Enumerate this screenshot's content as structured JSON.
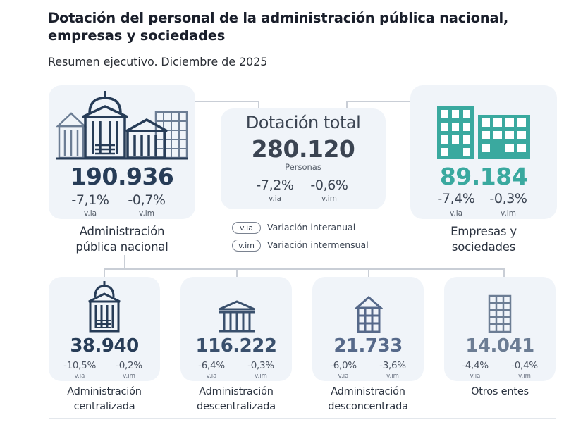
{
  "header": {
    "title": "Dotación del personal de la administración pública nacional, empresas y sociedades",
    "subtitle": "Resumen ejecutivo. Diciembre de 2025"
  },
  "colors": {
    "navy": "#273c57",
    "teal": "#3aa99f",
    "slate": "#6c7d94",
    "card": "#f0f4f9"
  },
  "total": {
    "title": "Dotación total",
    "value": "280.120",
    "unit": "Personas",
    "via": "-7,2%",
    "vim": "-0,6%",
    "via_label": "v.ia",
    "vim_label": "v.im"
  },
  "apn": {
    "value": "190.936",
    "via": "-7,1%",
    "vim": "-0,7%",
    "via_label": "v.ia",
    "vim_label": "v.im",
    "caption_1": "Administración",
    "caption_2": "pública nacional",
    "icon": "government-buildings-icon"
  },
  "empresas": {
    "value": "89.184",
    "via": "-7,4%",
    "vim": "-0,3%",
    "via_label": "v.ia",
    "vim_label": "v.im",
    "caption_1": "Empresas y",
    "caption_2": "sociedades",
    "icon": "office-towers-icon"
  },
  "legend": [
    {
      "code": "v.ia",
      "text": "Variación interanual"
    },
    {
      "code": "v.im",
      "text": "Variación intermensual"
    }
  ],
  "subgroups": [
    {
      "value": "38.940",
      "via": "-10,5%",
      "vim": "-0,2%",
      "via_label": "v.ia",
      "vim_label": "v.im",
      "caption_1": "Administración",
      "caption_2": "centralizada",
      "icon": "capitol-icon"
    },
    {
      "value": "116.222",
      "via": "-6,4%",
      "vim": "-0,3%",
      "via_label": "v.ia",
      "vim_label": "v.im",
      "caption_1": "Administración",
      "caption_2": "descentralizada",
      "icon": "columned-building-icon"
    },
    {
      "value": "21.733",
      "via": "-6,0%",
      "vim": "-3,6%",
      "via_label": "v.ia",
      "vim_label": "v.im",
      "caption_1": "Administración",
      "caption_2": "desconcentrada",
      "icon": "house-building-icon"
    },
    {
      "value": "14.041",
      "via": "-4,4%",
      "vim": "-0,4%",
      "via_label": "v.ia",
      "vim_label": "v.im",
      "caption_1": "Otros entes",
      "caption_2": "",
      "icon": "tower-building-icon"
    }
  ]
}
